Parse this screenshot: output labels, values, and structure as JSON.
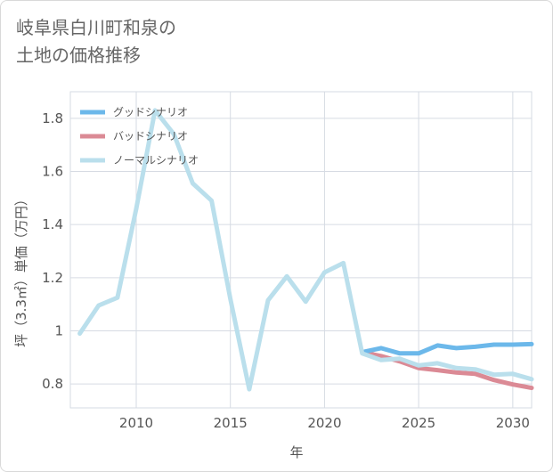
{
  "title_line1": "岐阜県白川町和泉の",
  "title_line2": "土地の価格推移",
  "chart_data": {
    "type": "line",
    "xlabel": "年",
    "ylabel": "坪（3.3㎡）単価（万円）",
    "xlim": [
      2006.5,
      2031
    ],
    "ylim": [
      0.71,
      1.9
    ],
    "xticks": [
      2010,
      2015,
      2020,
      2025,
      2030
    ],
    "yticks": [
      0.8,
      1,
      1.2,
      1.4,
      1.6,
      1.8
    ],
    "ytick_labels": [
      "0.8",
      "1",
      "1.2",
      "1.4",
      "1.6",
      "1.8"
    ],
    "grid": true,
    "legend_position": "top-left",
    "series": [
      {
        "name": "グッドシナリオ",
        "color": "#6cb8ea",
        "x": [
          2022,
          2023,
          2024,
          2025,
          2026,
          2027,
          2028,
          2029,
          2030,
          2031
        ],
        "y": [
          0.92,
          0.935,
          0.915,
          0.915,
          0.945,
          0.935,
          0.94,
          0.948,
          0.948,
          0.95
        ]
      },
      {
        "name": "バッドシナリオ",
        "color": "#db8a95",
        "x": [
          2022,
          2023,
          2024,
          2025,
          2026,
          2027,
          2028,
          2029,
          2030,
          2031
        ],
        "y": [
          0.92,
          0.905,
          0.885,
          0.86,
          0.852,
          0.843,
          0.838,
          0.815,
          0.798,
          0.785
        ]
      },
      {
        "name": "ノーマルシナリオ",
        "color": "#badfec",
        "x": [
          2007,
          2008,
          2009,
          2010,
          2011,
          2012,
          2013,
          2014,
          2015,
          2016,
          2017,
          2018,
          2019,
          2020,
          2021,
          2022,
          2023,
          2024,
          2025,
          2026,
          2027,
          2028,
          2029,
          2030,
          2031
        ],
        "y": [
          0.99,
          1.095,
          1.125,
          1.46,
          1.83,
          1.74,
          1.555,
          1.49,
          1.12,
          0.78,
          1.115,
          1.205,
          1.11,
          1.22,
          1.255,
          0.915,
          0.89,
          0.895,
          0.87,
          0.878,
          0.86,
          0.855,
          0.835,
          0.838,
          0.818
        ]
      }
    ]
  }
}
